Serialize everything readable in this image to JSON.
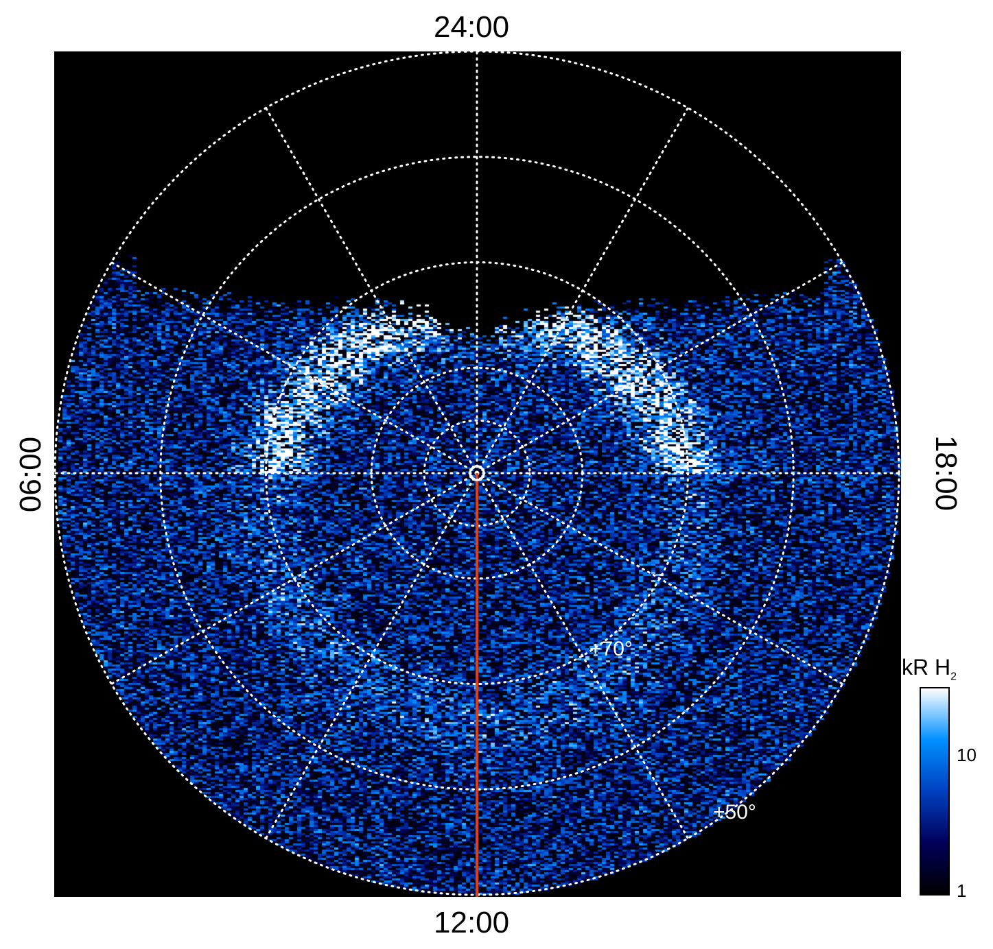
{
  "chart_data": {
    "type": "heatmap",
    "projection": "polar",
    "local_time_labels": {
      "top": "24:00",
      "bottom": "12:00",
      "left": "06:00",
      "right": "18:00"
    },
    "latitude_labels": [
      "+70°",
      "+50°"
    ],
    "latitude_grid_deg": [
      85,
      80,
      70,
      60,
      50
    ],
    "local_time_grid_hours": [
      0,
      2,
      4,
      6,
      8,
      10,
      12,
      14,
      16,
      18,
      20,
      22
    ],
    "colorbar": {
      "title": "kR H",
      "title_subscript": "2",
      "scale": "log",
      "range": [
        1,
        30
      ],
      "ticks": [
        "10",
        "1"
      ],
      "colors": [
        "#000000",
        "#00005a",
        "#0040c0",
        "#0090ff",
        "#ffffff"
      ]
    },
    "meridian_line_color": "#e04010",
    "grid": true,
    "background": "#000000"
  }
}
